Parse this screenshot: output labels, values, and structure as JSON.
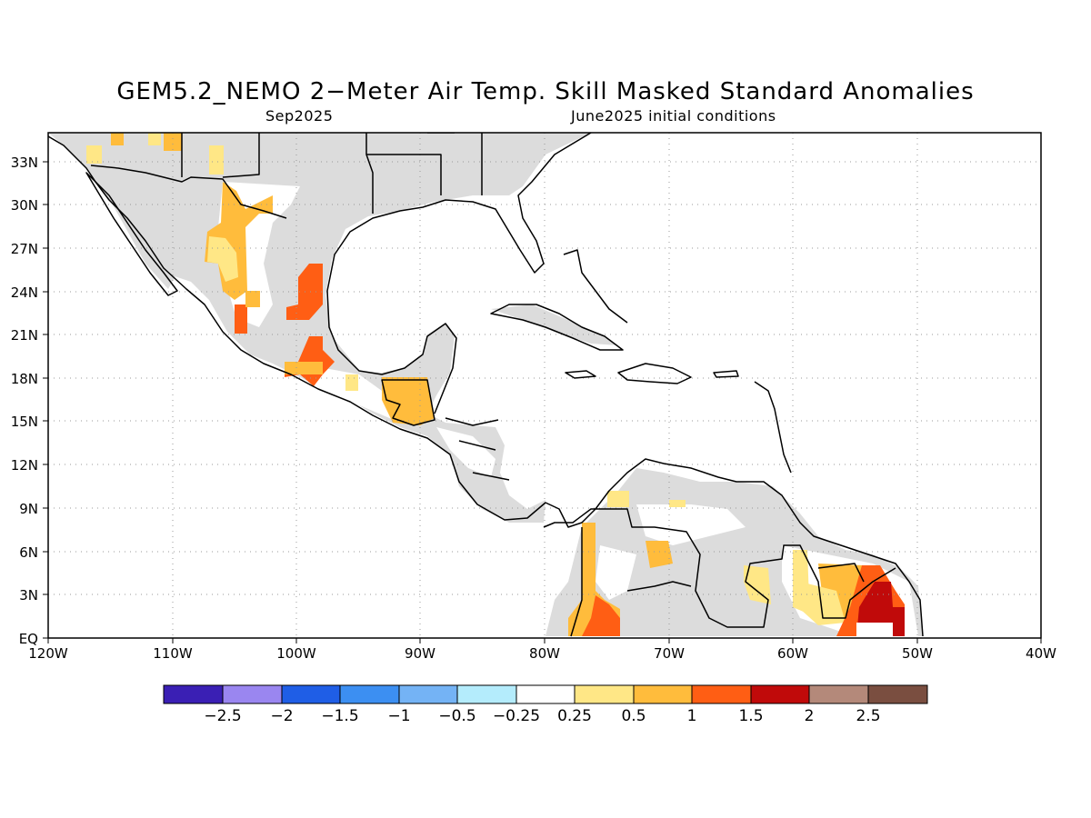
{
  "title": "GEM5.2_NEMO 2−Meter Air Temp. Skill Masked Standard Anomalies",
  "subtitle_left": "Sep2025",
  "subtitle_right": "June2025 initial conditions",
  "map": {
    "lon_range": [
      -120,
      -40
    ],
    "lat_range": [
      0,
      35
    ],
    "lat_ticks": [
      "33N",
      "30N",
      "27N",
      "24N",
      "21N",
      "18N",
      "15N",
      "12N",
      "9N",
      "6N",
      "3N",
      "EQ"
    ],
    "lon_ticks": [
      "120W",
      "110W",
      "100W",
      "90W",
      "80W",
      "70W",
      "60W",
      "50W",
      "40W"
    ],
    "land_fill_color": "#dcdcdc",
    "gridlines": "dotted"
  },
  "colorbar": {
    "colors": [
      "#3a1fb4",
      "#9a86f0",
      "#1f5ee6",
      "#3c8ff2",
      "#74b3f5",
      "#b4ecfc",
      "#ffffff",
      "#ffe786",
      "#ffbc3c",
      "#ff5e14",
      "#c00a0a",
      "#b4897a",
      "#7a4e40"
    ],
    "labels": [
      "−2.5",
      "−2",
      "−1.5",
      "−1",
      "−0.5",
      "−0.25",
      "0.25",
      "0.5",
      "1",
      "1.5",
      "2",
      "2.5"
    ]
  }
}
